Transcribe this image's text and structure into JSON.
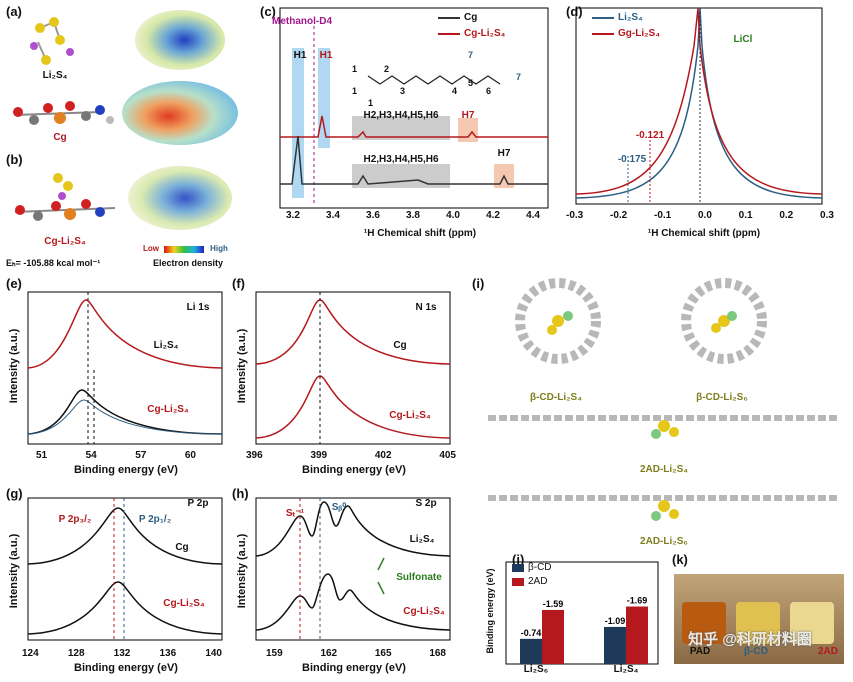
{
  "panels": {
    "a": "(a)",
    "b": "(b)",
    "c": "(c)",
    "d": "(d)",
    "e": "(e)",
    "f": "(f)",
    "g": "(g)",
    "h": "(h)",
    "i": "(i)",
    "j": "(j)",
    "k": "(k)"
  },
  "a": {
    "mol1": "Li₂S₄",
    "mol2": "Cg"
  },
  "b": {
    "mol": "Cg-Li₂S₄",
    "eb": "Eₕ= -105.88 kcal mol⁻¹",
    "low": "Low",
    "high": "High",
    "density": "Electron density"
  },
  "c": {
    "solvent": "Methanol-D4",
    "legend": [
      "Cg",
      "Cg-Li₂S₄"
    ],
    "h1": "H1",
    "h7": "H7",
    "hgroup": "H2,H3,H4,H5,H6",
    "xlabel": "¹H Chemical shift (ppm)",
    "xticks": [
      "3.2",
      "3.4",
      "3.6",
      "3.8",
      "4.0",
      "4.2",
      "4.4"
    ],
    "struct_nums": [
      "1",
      "1",
      "1",
      "2",
      "3",
      "4",
      "5",
      "6",
      "7",
      "7"
    ]
  },
  "d": {
    "legend": [
      "Li₂S₄",
      "Gg-Li₂S₄"
    ],
    "licl": "LiCl",
    "v1": "-0.175",
    "v2": "-0.121",
    "xlabel": "¹H Chemical shift (ppm)",
    "xticks": [
      "-0.3",
      "-0.2",
      "-0.1",
      "0.0",
      "0.1",
      "0.2",
      "0.3"
    ]
  },
  "e": {
    "title": "Li 1s",
    "top": "Li₂S₄",
    "bottom": "Cg-Li₂S₄",
    "xlabel": "Binding energy (eV)",
    "ylabel": "Intensity (a.u.)",
    "xticks": [
      "51",
      "54",
      "57",
      "60"
    ]
  },
  "f": {
    "title": "N 1s",
    "top": "Cg",
    "bottom": "Cg-Li₂S₄",
    "xlabel": "Binding energy (eV)",
    "ylabel": "Intensity (a.u.)",
    "xticks": [
      "396",
      "399",
      "402",
      "405"
    ]
  },
  "g": {
    "title": "P 2p",
    "p32": "P 2p₃/₂",
    "p12": "P 2p₁/₂",
    "top": "Cg",
    "bottom": "Cg-Li₂S₄",
    "xlabel": "Binding energy (eV)",
    "ylabel": "Intensity (a.u.)",
    "xticks": [
      "124",
      "128",
      "132",
      "136",
      "140"
    ]
  },
  "h": {
    "title": "S 2p",
    "st": "Sₜ⁻¹",
    "sb": "Sᵦ⁰",
    "top": "Li₂S₄",
    "sulf": "Sulfonate",
    "bottom": "Cg-Li₂S₄",
    "xlabel": "Binding energy (eV)",
    "ylabel": "Intensity (a.u.)",
    "xticks": [
      "159",
      "162",
      "165",
      "168"
    ]
  },
  "i": {
    "m1": "β-CD-Li₂S₄",
    "m2": "β-CD-Li₂S₆",
    "m3": "2AD-Li₂S₄",
    "m4": "2AD-Li₂S₆"
  },
  "j": {
    "legend": [
      "β-CD",
      "2AD"
    ],
    "ylabel": "Binding energy (eV)",
    "categories": [
      "Li₂S₆",
      "Li₂S₄"
    ]
  },
  "k": {
    "watermark": "知乎 @科研材料圈",
    "blank": "PAD",
    "l2": "β-CD",
    "l3": "2AD"
  },
  "colors": {
    "red": "#b5181d",
    "blue": "#2c5f86",
    "navy": "#1d3a5b",
    "green": "#2e7d1f",
    "purple": "#a4168c",
    "olive": "#7f7f1e"
  },
  "chart_data": [
    {
      "type": "bar",
      "panel": "j",
      "categories": [
        "Li₂S₆",
        "Li₂S₄"
      ],
      "series": [
        {
          "name": "β-CD",
          "values": [
            -0.74,
            -1.09
          ]
        },
        {
          "name": "2AD",
          "values": [
            -1.59,
            -1.69
          ]
        }
      ],
      "labels": [
        [
          "-0.74",
          "-1.59"
        ],
        [
          "-1.09",
          "-1.69"
        ]
      ],
      "ylabel": "Binding energy (eV)"
    },
    {
      "type": "line",
      "panel": "c",
      "xlabel": "¹H Chemical shift (ppm)",
      "xlim": [
        4.4,
        3.1
      ]
    },
    {
      "type": "line",
      "panel": "d",
      "xlabel": "¹H Chemical shift (ppm)",
      "xlim": [
        -0.3,
        0.3
      ],
      "annotations": [
        -0.175,
        -0.121
      ]
    }
  ]
}
